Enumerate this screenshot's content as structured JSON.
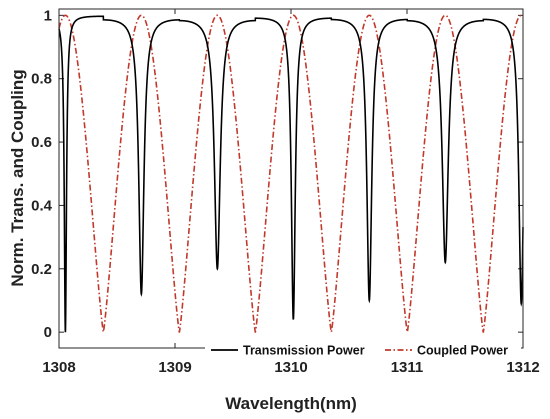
{
  "chart_data": {
    "type": "line",
    "title": "",
    "xlabel": "Wavelength(nm)",
    "ylabel": "Norm. Trans. and Coupling",
    "xlim": [
      1308,
      1312
    ],
    "ylim": [
      -0.05,
      1.02
    ],
    "xticks": [
      "1308",
      "1309",
      "1310",
      "1311",
      "1312"
    ],
    "yticks": [
      "0",
      "0.2",
      "0.4",
      "0.6",
      "0.8",
      "1"
    ],
    "grid": false,
    "legend_position": "bottom-right",
    "ring_fsr_nm": 0.655,
    "ring_first_resonance_nm": 1308.055,
    "series": [
      {
        "name": "Transmission Power",
        "style": "solid",
        "color": "#000000",
        "resonance_wavelengths_nm": [
          1308.055,
          1308.71,
          1309.365,
          1310.02,
          1310.675,
          1311.33,
          1311.985
        ],
        "dip_minima": [
          0.0,
          0.12,
          0.2,
          0.04,
          0.1,
          0.22,
          0.09
        ],
        "off_resonance_value": 1.0
      },
      {
        "name": "Coupled Power",
        "style": "dash-dot",
        "color": "#c0392b",
        "peak_wavelengths_nm": [
          1308.055,
          1308.71,
          1309.365,
          1310.02,
          1310.675,
          1311.33,
          1311.985
        ],
        "minimum_wavelengths_nm": [
          1308.383,
          1309.038,
          1309.693,
          1310.348,
          1311.003,
          1311.658
        ],
        "peak_value": 1.0,
        "minimum_value": 0.0
      }
    ]
  }
}
